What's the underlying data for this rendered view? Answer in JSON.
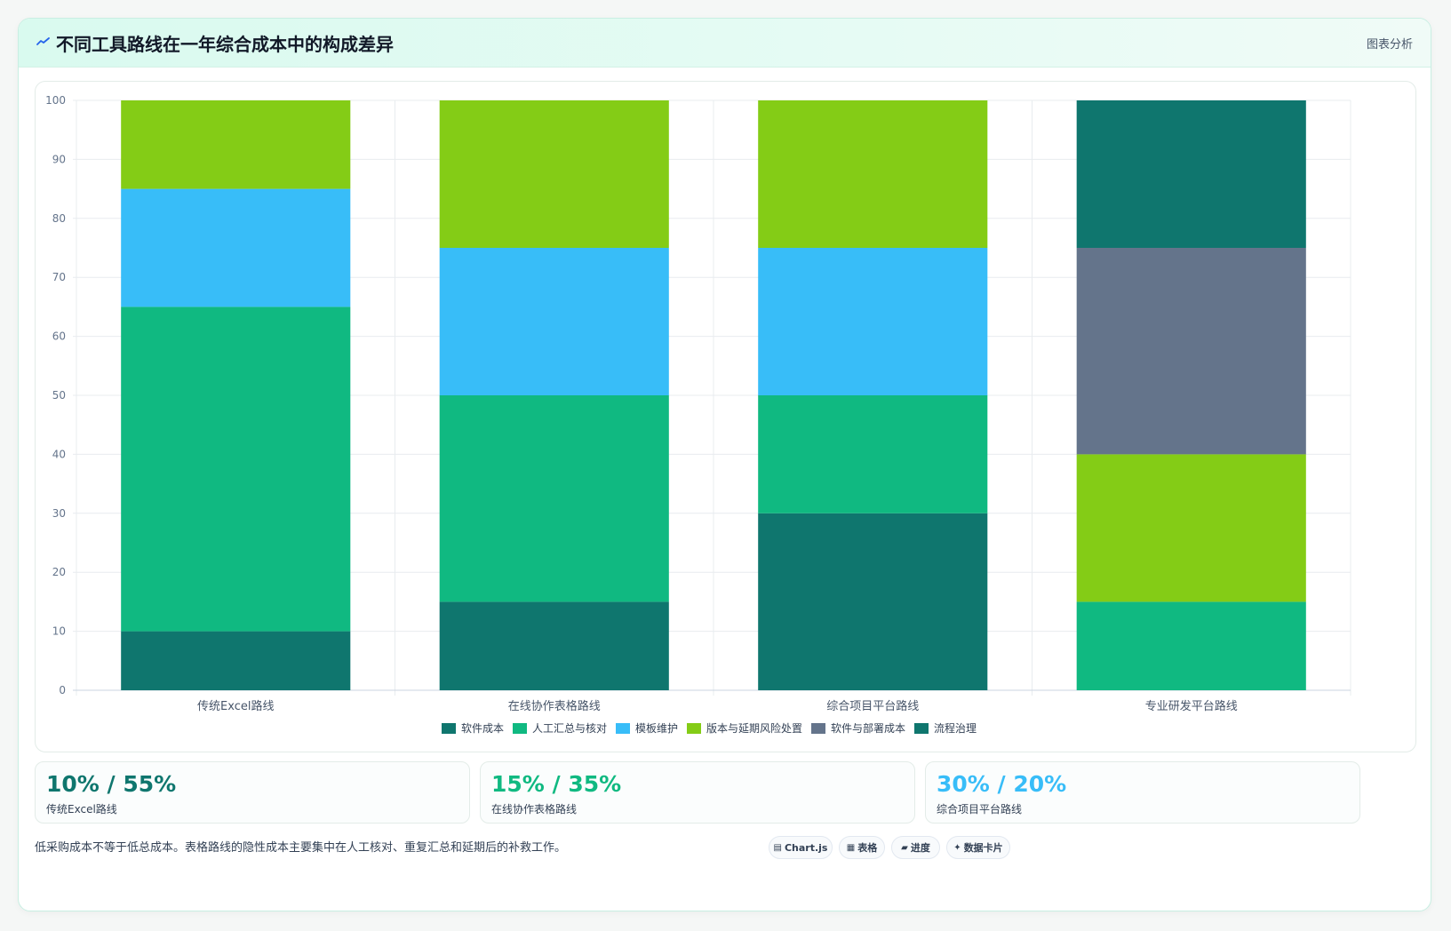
{
  "header": {
    "title": "不同工具路线在一年综合成本中的构成差异",
    "right_label": "图表分析",
    "icon": "chart-line-icon"
  },
  "chart_data": {
    "type": "bar",
    "stacked": true,
    "categories": [
      "传统Excel路线",
      "在线协作表格路线",
      "综合项目平台路线",
      "专业研发平台路线"
    ],
    "ylim": [
      0,
      100
    ],
    "yticks": [
      0,
      10,
      20,
      30,
      40,
      50,
      60,
      70,
      80,
      90,
      100
    ],
    "grid": true,
    "legend_position": "bottom",
    "series": [
      {
        "name": "软件成本",
        "color": "#0f766e",
        "values": [
          10,
          15,
          30,
          0
        ]
      },
      {
        "name": "人工汇总与核对",
        "color": "#10b981",
        "values": [
          55,
          35,
          20,
          15
        ]
      },
      {
        "name": "模板维护",
        "color": "#38bdf8",
        "values": [
          20,
          25,
          25,
          0
        ]
      },
      {
        "name": "版本与延期风险处置",
        "color": "#84cc16",
        "values": [
          15,
          25,
          25,
          25
        ]
      },
      {
        "name": "软件与部署成本",
        "color": "#64748b",
        "values": [
          0,
          0,
          0,
          35
        ]
      },
      {
        "name": "流程治理",
        "color": "#0f766e",
        "values": [
          0,
          0,
          0,
          25
        ]
      }
    ]
  },
  "stats": [
    {
      "value": "10% / 55%",
      "label": "传统Excel路线",
      "color": "#0f766e"
    },
    {
      "value": "15% / 35%",
      "label": "在线协作表格路线",
      "color": "#10b981"
    },
    {
      "value": "30% / 20%",
      "label": "综合项目平台路线",
      "color": "#38bdf8"
    }
  ],
  "footnote": "低采购成本不等于低总成本。表格路线的隐性成本主要集中在人工核对、重复汇总和延期后的补救工作。",
  "tags": [
    {
      "glyph": "▤",
      "label": "Chart.js"
    },
    {
      "glyph": "▦",
      "label": "表格"
    },
    {
      "glyph": "▰",
      "label": "进度"
    },
    {
      "glyph": "✦",
      "label": "数据卡片"
    }
  ]
}
